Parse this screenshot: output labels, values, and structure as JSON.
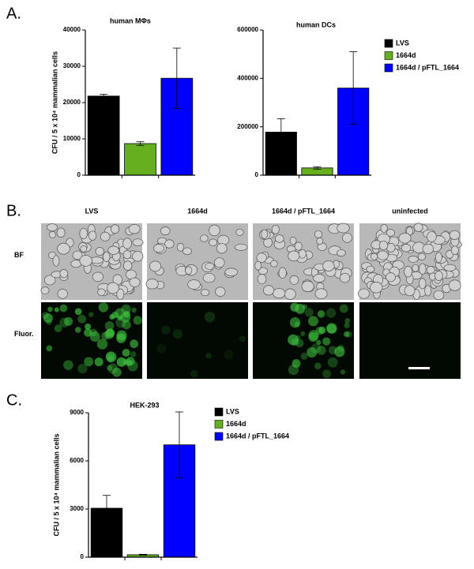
{
  "panels": {
    "a": "A.",
    "b": "B.",
    "c": "C."
  },
  "microscopy": {
    "columns": [
      "LVS",
      "1664d",
      "1664d / pFTL_1664",
      "uninfected"
    ],
    "rows": [
      "BF",
      "Fluor."
    ]
  },
  "chart_data": [
    {
      "type": "bar",
      "title": "human MΦs",
      "ylabel": "CFU / 5 x 10⁴ mammalian cells",
      "series": [
        {
          "name": "LVS",
          "color": "#000000",
          "values": [
            21800
          ],
          "errors": [
            500
          ]
        },
        {
          "name": "1664d",
          "color": "#66b020",
          "values": [
            8700
          ],
          "errors": [
            500
          ]
        },
        {
          "name": "1664d / pFTL_1664",
          "color": "#0000ff",
          "values": [
            26700
          ],
          "errors": [
            8300
          ]
        }
      ],
      "ylim": [
        0,
        40000
      ],
      "yticks": [
        0,
        10000,
        20000,
        30000,
        40000
      ],
      "legend": "right"
    },
    {
      "type": "bar",
      "title": "human DCs",
      "series": [
        {
          "name": "LVS",
          "color": "#000000",
          "values": [
            178000
          ],
          "errors": [
            55000
          ]
        },
        {
          "name": "1664d",
          "color": "#66b020",
          "values": [
            30000
          ],
          "errors": [
            5000
          ]
        },
        {
          "name": "1664d / pFTL_1664",
          "color": "#0000ff",
          "values": [
            360000
          ],
          "errors": [
            150000
          ]
        }
      ],
      "ylim": [
        0,
        600000
      ],
      "yticks": [
        0,
        200000,
        400000,
        600000
      ],
      "legend": false
    },
    {
      "type": "bar",
      "title": "HEK-293",
      "ylabel": "CFU / 5 x 10⁴ mammalian cells",
      "series": [
        {
          "name": "LVS",
          "color": "#000000",
          "values": [
            3050
          ],
          "errors": [
            800
          ]
        },
        {
          "name": "1664d",
          "color": "#66b020",
          "values": [
            150
          ],
          "errors": [
            30
          ]
        },
        {
          "name": "1664d / pFTL_1664",
          "color": "#0000ff",
          "values": [
            7000
          ],
          "errors": [
            2050
          ]
        }
      ],
      "ylim": [
        0,
        9000
      ],
      "yticks": [
        0,
        3000,
        6000,
        9000
      ],
      "legend": "right"
    }
  ]
}
